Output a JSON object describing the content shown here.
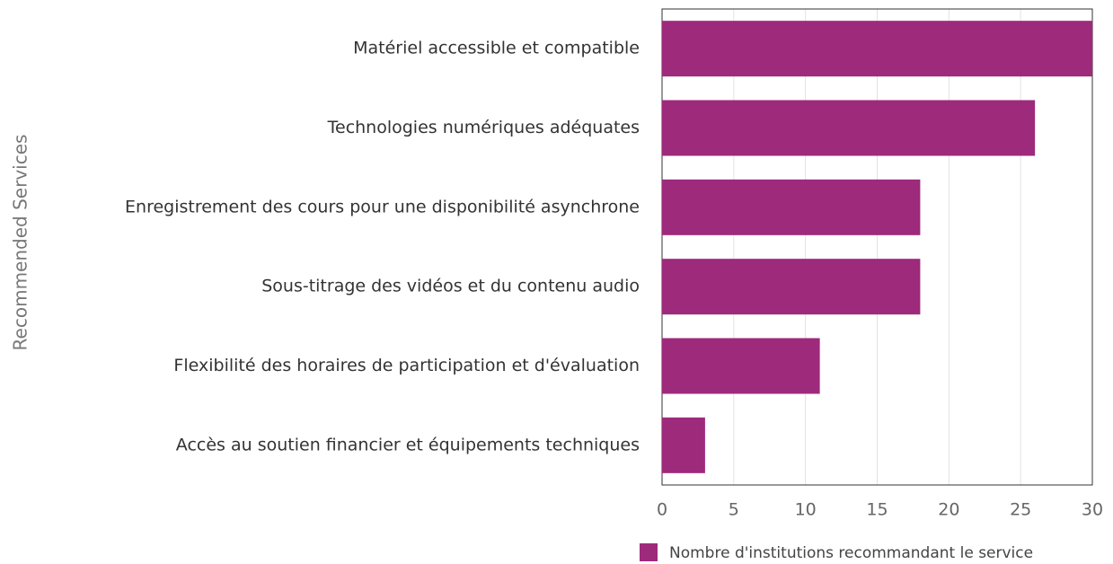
{
  "chart_data": {
    "type": "bar",
    "y_label": "Recommended Services",
    "categories": [
      "Matériel accessible et compatible",
      "Technologies numériques adéquates",
      "Enregistrement des cours pour une disponibilité asynchrone",
      "Sous-titrage des vidéos et du contenu audio",
      "Flexibilité des horaires de participation et d'évaluation",
      "Accès au soutien financier et équipements techniques"
    ],
    "series": [
      {
        "name": "Nombre d'institutions recommandant le service",
        "color": "#9e2a7c",
        "values": [
          30,
          26,
          18,
          18,
          11,
          3
        ]
      }
    ],
    "xlim": [
      0,
      30
    ],
    "xticks": [
      0,
      5,
      10,
      15,
      20,
      25,
      30
    ],
    "grid": true,
    "legend": "bottom-right"
  }
}
